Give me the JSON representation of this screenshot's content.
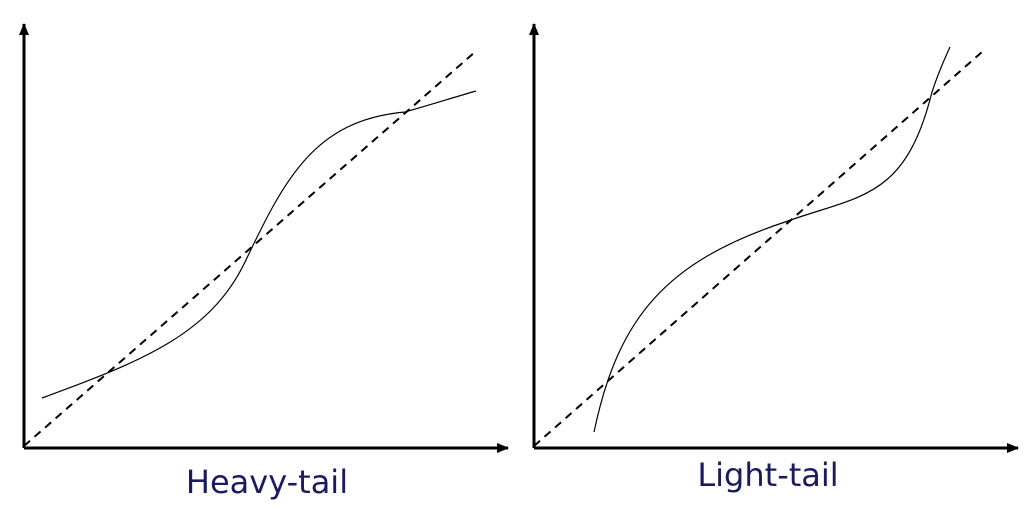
{
  "panels": [
    {
      "caption": "Heavy-tail"
    },
    {
      "caption": "Light-tail"
    }
  ],
  "colors": {
    "axis": "#000000",
    "curve": "#000000",
    "reference_line": "#000000",
    "caption": "#1a1a5e"
  }
}
